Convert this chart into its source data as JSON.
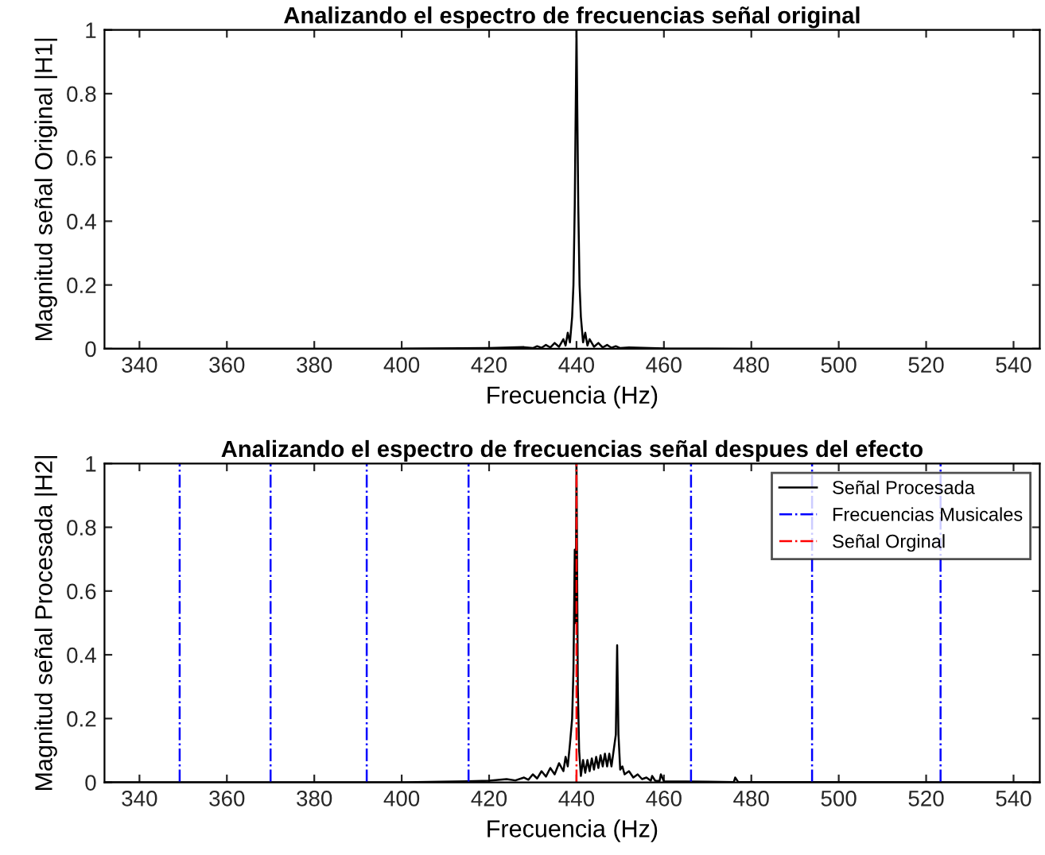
{
  "chart_data": [
    {
      "type": "line",
      "title": "Analizando el espectro de frecuencias señal original",
      "xlabel": "Frecuencia (Hz)",
      "ylabel": "Magnitud señal Original |H1|",
      "xlim": [
        332,
        546
      ],
      "xticks": [
        340,
        360,
        380,
        400,
        420,
        440,
        460,
        480,
        500,
        520,
        540
      ],
      "ylim": [
        0,
        1
      ],
      "yticks": [
        0,
        0.2,
        0.4,
        0.6,
        0.8,
        1
      ],
      "series": [
        {
          "color": "#000000",
          "line_style": "solid",
          "x": [
            332,
            400,
            420,
            428,
            430,
            431,
            432,
            433,
            434,
            435,
            436,
            437,
            437.5,
            438,
            438.5,
            439,
            439.3,
            439.6,
            440,
            440.4,
            440.7,
            441,
            441.5,
            442,
            442.5,
            443,
            444,
            445,
            446,
            447,
            448,
            449,
            450,
            452,
            460,
            480,
            546
          ],
          "values": [
            0,
            0,
            0.002,
            0.005,
            0.002,
            0.008,
            0.003,
            0.012,
            0.004,
            0.018,
            0.006,
            0.03,
            0.01,
            0.05,
            0.02,
            0.1,
            0.2,
            0.45,
            1,
            0.45,
            0.2,
            0.1,
            0.02,
            0.05,
            0.01,
            0.03,
            0.006,
            0.018,
            0.004,
            0.012,
            0.003,
            0.008,
            0.002,
            0.004,
            0.001,
            0,
            0
          ]
        }
      ]
    },
    {
      "type": "line",
      "title": "Analizando el espectro de frecuencias señal despues del efecto",
      "xlabel": "Frecuencia (Hz)",
      "ylabel": "Magnitud señal Procesada |H2|",
      "xlim": [
        332,
        546
      ],
      "xticks": [
        340,
        360,
        380,
        400,
        420,
        440,
        460,
        480,
        500,
        520,
        540
      ],
      "ylim": [
        0,
        1
      ],
      "yticks": [
        0,
        0.2,
        0.4,
        0.6,
        0.8,
        1
      ],
      "legend": "top right",
      "series": [
        {
          "name": "Señal Procesada",
          "color": "#000000",
          "line_style": "solid",
          "x": [
            332,
            400,
            415,
            420,
            424,
            426,
            428,
            429,
            430,
            431,
            432,
            433,
            434,
            435,
            436,
            437,
            437.5,
            438,
            438.5,
            439,
            439.3,
            439.6,
            439.8,
            440,
            440.3,
            440.6,
            441,
            441.5,
            442,
            442.5,
            443,
            443.5,
            444,
            444.5,
            445,
            445.5,
            446,
            446.5,
            447,
            447.5,
            448,
            448.5,
            449,
            449.3,
            449.6,
            450,
            450.5,
            451,
            452,
            453,
            454,
            455,
            456,
            457,
            457.3,
            458,
            459,
            459.3,
            460,
            470,
            476,
            476.3,
            477,
            546
          ],
          "values": [
            0,
            0,
            0.003,
            0.005,
            0.01,
            0.006,
            0.015,
            0.008,
            0.025,
            0.012,
            0.035,
            0.018,
            0.045,
            0.025,
            0.06,
            0.035,
            0.08,
            0.05,
            0.12,
            0.2,
            0.35,
            0.73,
            0.5,
            1,
            0.3,
            0.1,
            0.02,
            0.07,
            0.03,
            0.07,
            0.035,
            0.075,
            0.04,
            0.08,
            0.045,
            0.085,
            0.05,
            0.09,
            0.05,
            0.09,
            0.05,
            0.1,
            0.15,
            0.43,
            0.15,
            0.04,
            0.05,
            0.025,
            0.035,
            0.015,
            0.025,
            0.01,
            0.015,
            0.005,
            0.02,
            0.005,
            0.004,
            0.025,
            0.003,
            0.002,
            0.001,
            0.015,
            0.001,
            0
          ]
        },
        {
          "name": "Frecuencias Musicales",
          "color": "#0000ff",
          "line_style": "dashdot",
          "x": [
            349.2,
            349.2,
            null,
            370,
            370,
            null,
            392,
            392,
            null,
            415.3,
            415.3,
            null,
            466.2,
            466.2,
            null,
            493.9,
            493.9,
            null,
            523.3,
            523.3
          ],
          "values": [
            0,
            1,
            null,
            0,
            1,
            null,
            0,
            1,
            null,
            0,
            1,
            null,
            0,
            1,
            null,
            0,
            1,
            null,
            0,
            1
          ]
        },
        {
          "name": "Señal Orginal",
          "color": "#ff0000",
          "line_style": "dashdot",
          "x": [
            440,
            440
          ],
          "values": [
            0,
            1
          ]
        }
      ]
    }
  ]
}
